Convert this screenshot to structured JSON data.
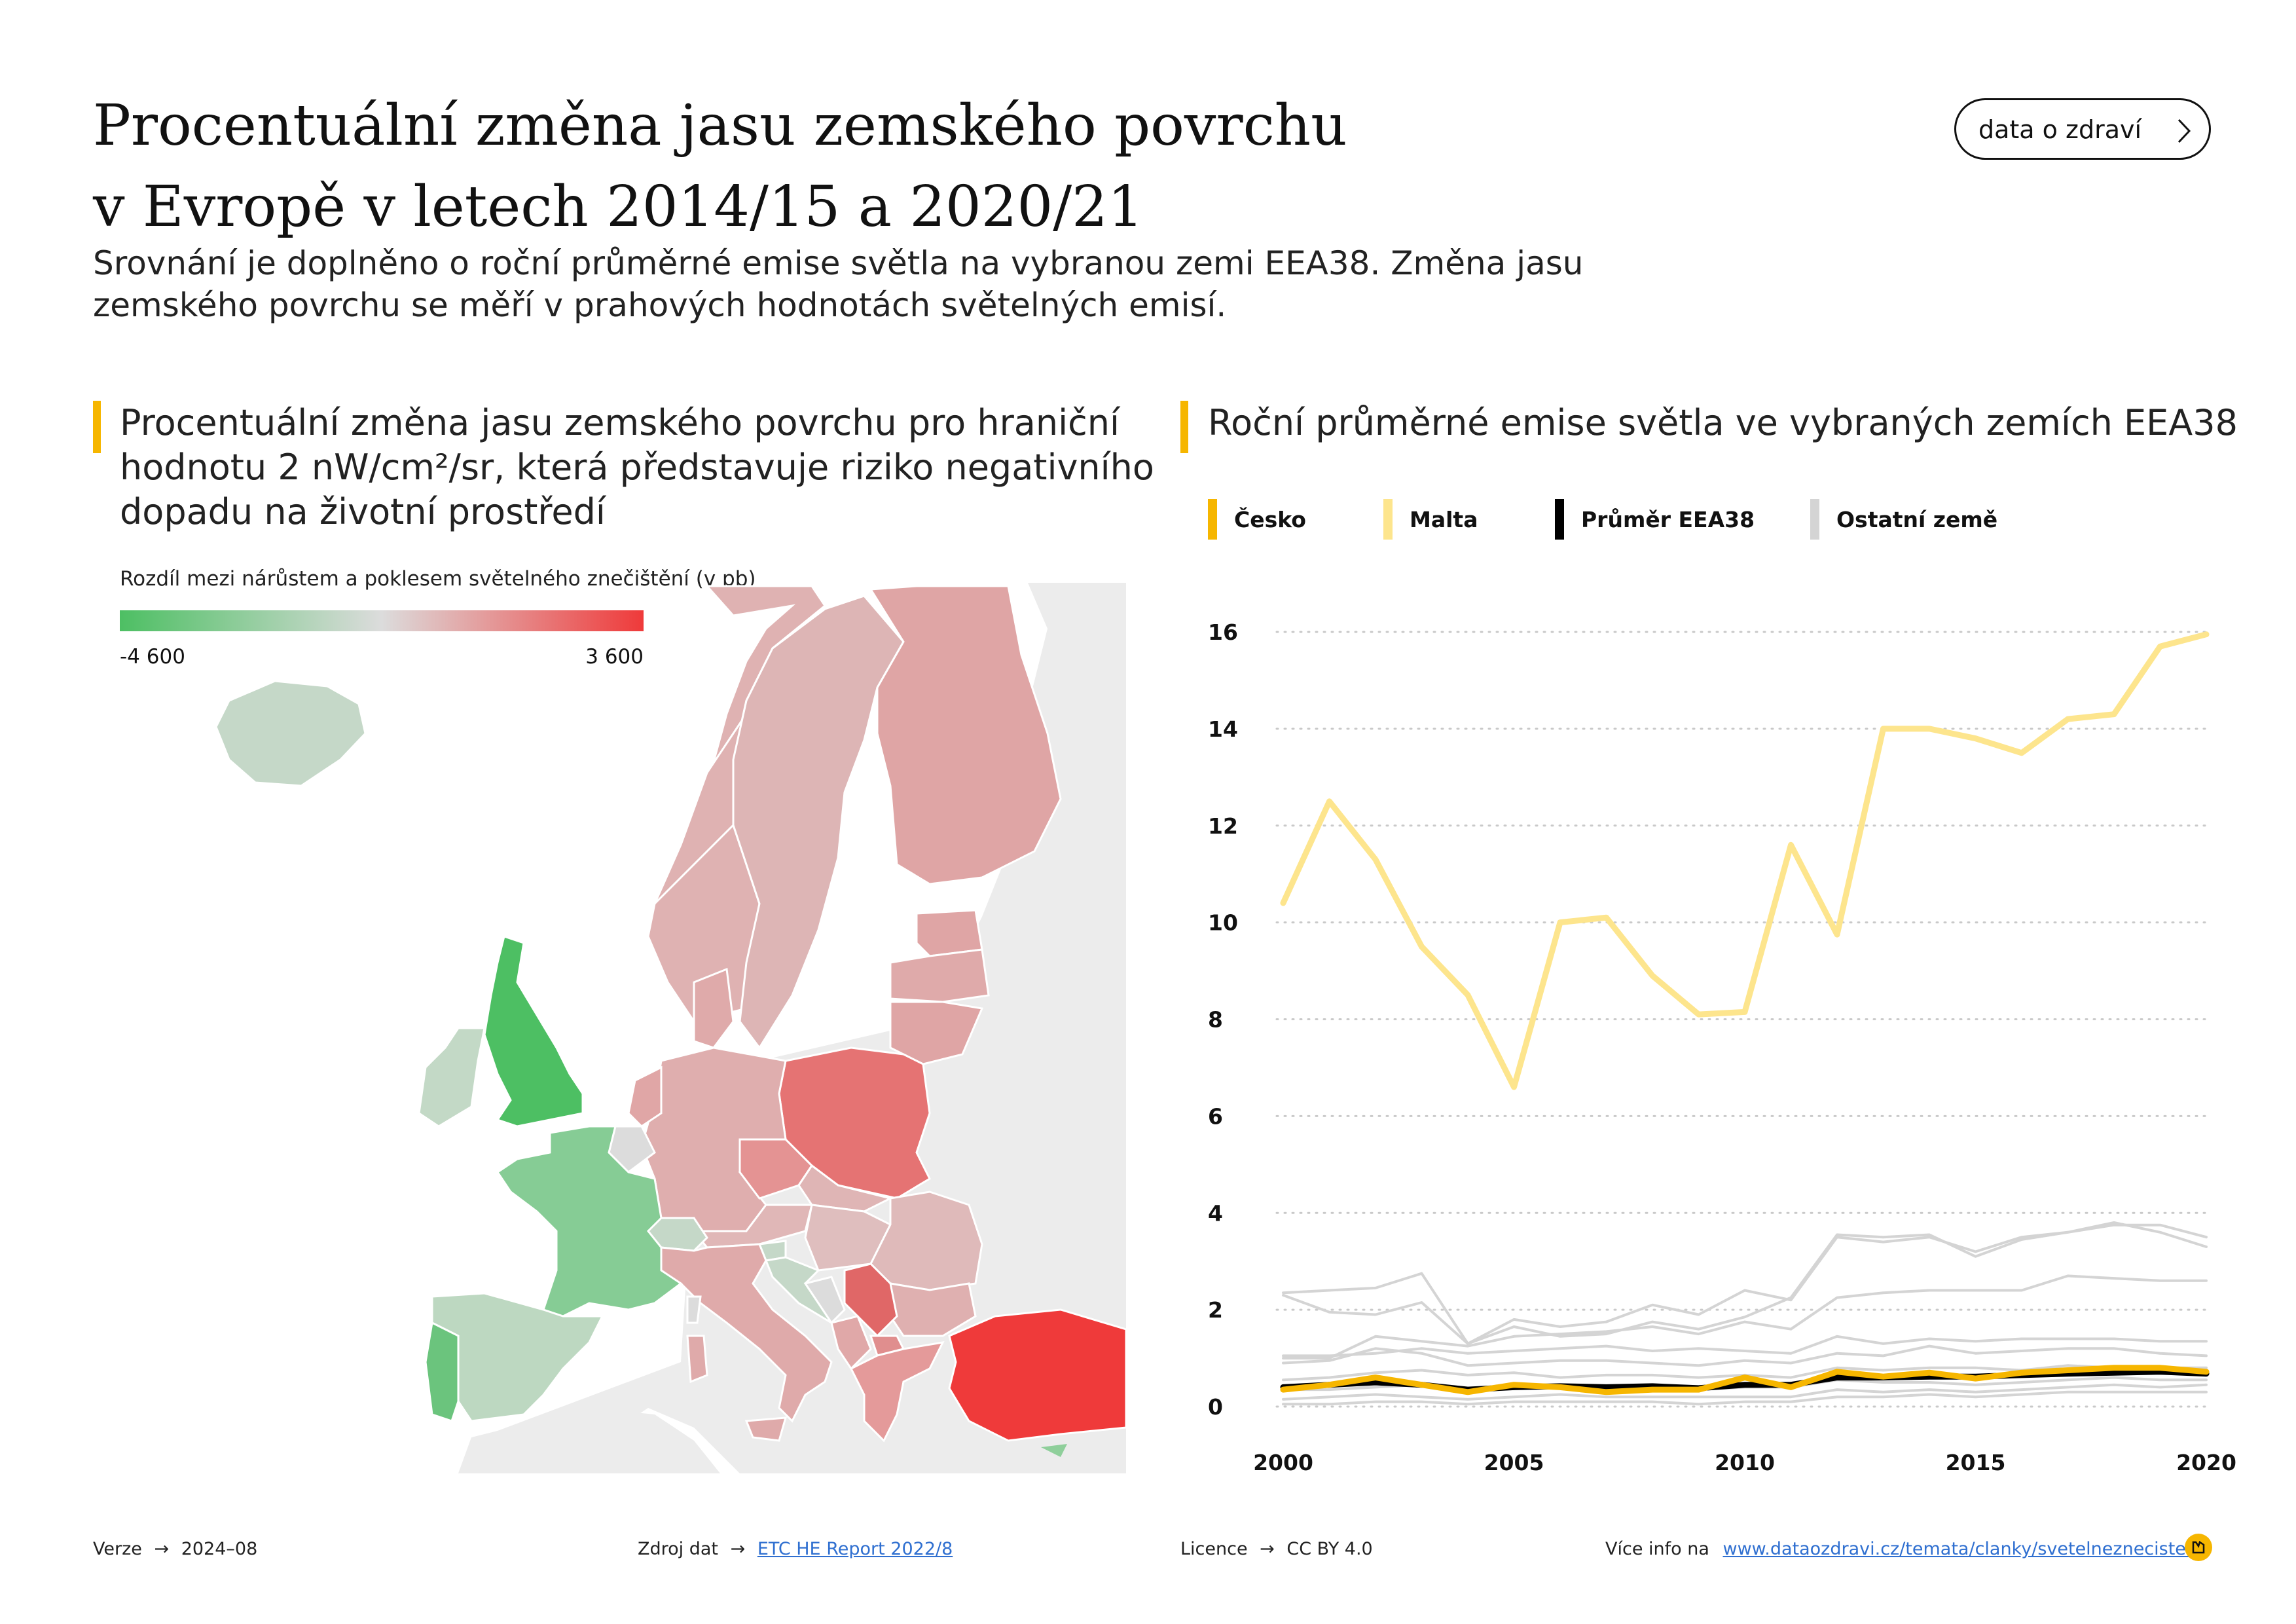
{
  "header": {
    "title_line1": "Procentuální změna jasu zemského povrchu",
    "title_line2": "v Evropě v letech 2014/15 a 2020/21",
    "subtitle_line1": "Srovnání je doplněno o roční průměrné emise světla na vybranou zemi EEA38. Změna jasu",
    "subtitle_line2": "zemského povrchu se měří v prahových hodnotách světelných emisí.",
    "button_label": "data o zdraví"
  },
  "left_panel": {
    "title_line1": "Procentuální změna jasu zemského povrchu pro hraniční",
    "title_line2": "hodnotu 2 nW/cm²/sr, která představuje riziko negativního",
    "title_line3": "dopadu na životní prostředí",
    "scale_label": "Rozdíl mezi nárůstem a poklesem světelného znečištění (v pb)",
    "scale_min": "-4 600",
    "scale_max": "3 600",
    "colors": {
      "low": "#4dbf63",
      "mid": "#dcdcdc",
      "high": "#ef3a3a",
      "no_data": "#ececec"
    }
  },
  "chart_data": {
    "type": "line",
    "title": "Roční průměrné emise světla ve vybraných zemích EEA38",
    "xlabel": "",
    "ylabel": "",
    "x": [
      2000,
      2001,
      2002,
      2003,
      2004,
      2005,
      2006,
      2007,
      2008,
      2009,
      2010,
      2011,
      2012,
      2013,
      2014,
      2015,
      2016,
      2017,
      2018,
      2019,
      2020
    ],
    "xlim": [
      2000,
      2020
    ],
    "ylim": [
      0,
      16
    ],
    "x_ticks": [
      2000,
      2005,
      2010,
      2015,
      2020
    ],
    "y_ticks": [
      0,
      2,
      4,
      6,
      8,
      10,
      12,
      14,
      16
    ],
    "grid": "horizontal dotted",
    "legend_position": "top",
    "legend": [
      {
        "name": "Česko",
        "color": "#f6b600"
      },
      {
        "name": "Malta",
        "color": "#fde58d"
      },
      {
        "name": "Průměr EEA38",
        "color": "#000000"
      },
      {
        "name": "Ostatní země",
        "color": "#d4d4d4"
      }
    ],
    "series": [
      {
        "name": "Ostatní země",
        "color": "#d4d4d4",
        "values": [
          2.3,
          1.95,
          1.9,
          2.15,
          1.3,
          1.8,
          1.65,
          1.75,
          2.1,
          1.9,
          2.4,
          2.2,
          3.5,
          3.4,
          3.5,
          3.2,
          3.5,
          3.6,
          3.8,
          3.6,
          3.3
        ]
      },
      {
        "name": "Ostatní země",
        "color": "#d4d4d4",
        "values": [
          2.35,
          2.4,
          2.45,
          2.75,
          1.3,
          1.65,
          1.45,
          1.5,
          1.75,
          1.6,
          1.85,
          2.25,
          3.55,
          3.5,
          3.55,
          3.1,
          3.45,
          3.6,
          3.75,
          3.75,
          3.5
        ]
      },
      {
        "name": "Ostatní země",
        "color": "#d4d4d4",
        "values": [
          1.0,
          1.0,
          1.45,
          1.35,
          1.25,
          1.45,
          1.5,
          1.55,
          1.65,
          1.5,
          1.75,
          1.6,
          2.25,
          2.35,
          2.4,
          2.4,
          2.4,
          2.7,
          2.65,
          2.6,
          2.6
        ]
      },
      {
        "name": "Ostatní země",
        "color": "#d4d4d4",
        "values": [
          1.05,
          1.05,
          1.1,
          1.2,
          1.1,
          1.15,
          1.2,
          1.25,
          1.15,
          1.2,
          1.15,
          1.1,
          1.45,
          1.3,
          1.4,
          1.35,
          1.4,
          1.4,
          1.4,
          1.35,
          1.35
        ]
      },
      {
        "name": "Ostatní země",
        "color": "#d4d4d4",
        "values": [
          0.9,
          0.95,
          1.2,
          1.1,
          0.85,
          0.9,
          0.95,
          0.95,
          0.9,
          0.85,
          0.95,
          0.9,
          1.1,
          1.05,
          1.25,
          1.1,
          1.15,
          1.2,
          1.2,
          1.1,
          1.05
        ]
      },
      {
        "name": "Ostatní země",
        "color": "#d4d4d4",
        "values": [
          0.55,
          0.6,
          0.7,
          0.75,
          0.65,
          0.7,
          0.6,
          0.65,
          0.65,
          0.6,
          0.65,
          0.6,
          0.8,
          0.75,
          0.8,
          0.8,
          0.75,
          0.85,
          0.8,
          0.8,
          0.8
        ]
      },
      {
        "name": "Ostatní země",
        "color": "#d4d4d4",
        "values": [
          0.35,
          0.35,
          0.4,
          0.45,
          0.35,
          0.45,
          0.4,
          0.4,
          0.4,
          0.35,
          0.4,
          0.4,
          0.55,
          0.5,
          0.5,
          0.45,
          0.5,
          0.55,
          0.6,
          0.55,
          0.55
        ]
      },
      {
        "name": "Ostatní země",
        "color": "#d4d4d4",
        "values": [
          0.15,
          0.2,
          0.25,
          0.2,
          0.15,
          0.2,
          0.25,
          0.2,
          0.2,
          0.2,
          0.2,
          0.2,
          0.35,
          0.3,
          0.35,
          0.3,
          0.35,
          0.4,
          0.45,
          0.4,
          0.45
        ]
      },
      {
        "name": "Ostatní země",
        "color": "#d4d4d4",
        "values": [
          0.05,
          0.05,
          0.1,
          0.1,
          0.05,
          0.1,
          0.1,
          0.1,
          0.1,
          0.05,
          0.1,
          0.1,
          0.2,
          0.2,
          0.25,
          0.2,
          0.25,
          0.3,
          0.3,
          0.3,
          0.3
        ]
      },
      {
        "name": "Malta",
        "color": "#fde58d",
        "values": [
          10.4,
          12.5,
          11.3,
          9.5,
          8.5,
          6.6,
          10.0,
          10.1,
          8.9,
          8.1,
          8.15,
          11.6,
          9.75,
          14.0,
          14.0,
          13.8,
          13.5,
          14.2,
          14.3,
          15.7,
          15.95
        ]
      },
      {
        "name": "Průměr EEA38",
        "color": "#000000",
        "values": [
          0.4,
          0.45,
          0.5,
          0.45,
          0.35,
          0.4,
          0.42,
          0.4,
          0.42,
          0.38,
          0.45,
          0.45,
          0.6,
          0.6,
          0.62,
          0.62,
          0.65,
          0.68,
          0.7,
          0.72,
          0.68
        ]
      },
      {
        "name": "Česko",
        "color": "#f6b600",
        "values": [
          0.35,
          0.45,
          0.6,
          0.45,
          0.3,
          0.45,
          0.4,
          0.3,
          0.35,
          0.35,
          0.6,
          0.4,
          0.72,
          0.62,
          0.7,
          0.58,
          0.7,
          0.75,
          0.8,
          0.8,
          0.72
        ]
      }
    ]
  },
  "footer": {
    "version_label": "Verze",
    "version_value": "2024–08",
    "source_label": "Zdroj dat",
    "source_link": "ETC HE Report 2022/8",
    "license_label": "Licence",
    "license_value": "CC BY 4.0",
    "more_label": "Více info na",
    "more_link": "www.dataozdravi.cz/temata/clanky/svetelneznecisteni",
    "arrow": "→"
  }
}
